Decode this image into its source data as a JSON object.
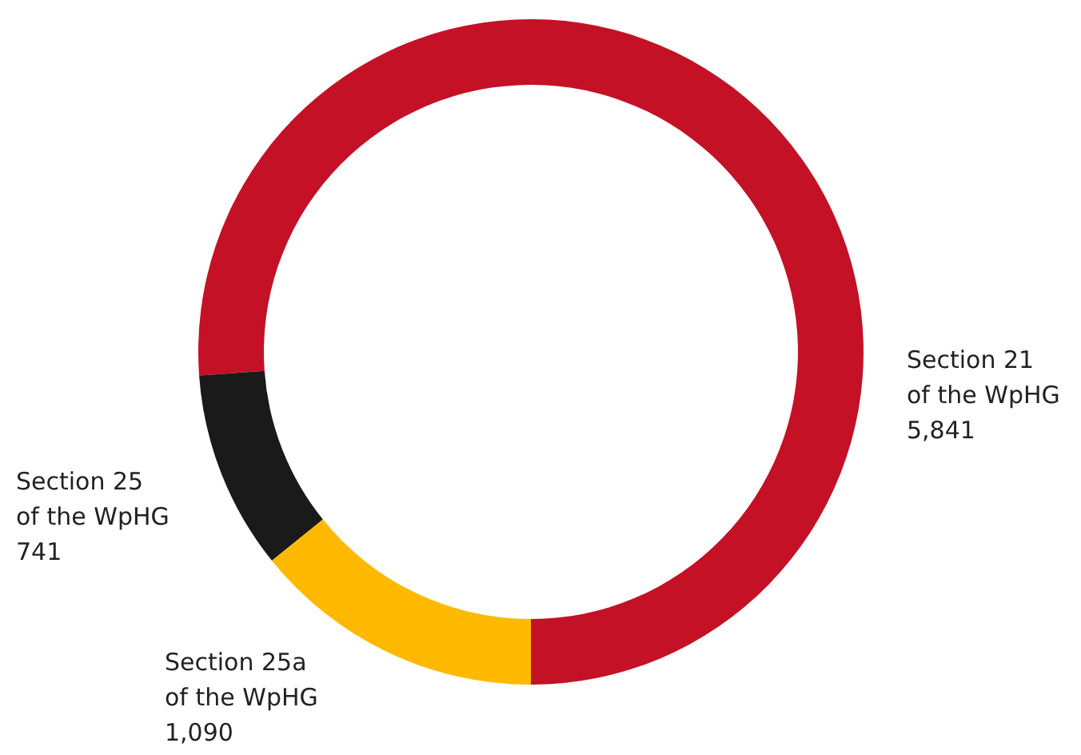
{
  "chart_data": {
    "type": "donut",
    "categories": [
      "Section 21\nof the WpHG",
      "Section 25\nof the WpHG",
      "Section 25a\nof the WpHG"
    ],
    "values": [
      5841,
      741,
      1090
    ],
    "colors": [
      "#c41125",
      "#1a1a1a",
      "#ffb900"
    ],
    "value_labels": [
      "5,841",
      "741",
      "1,090"
    ]
  }
}
